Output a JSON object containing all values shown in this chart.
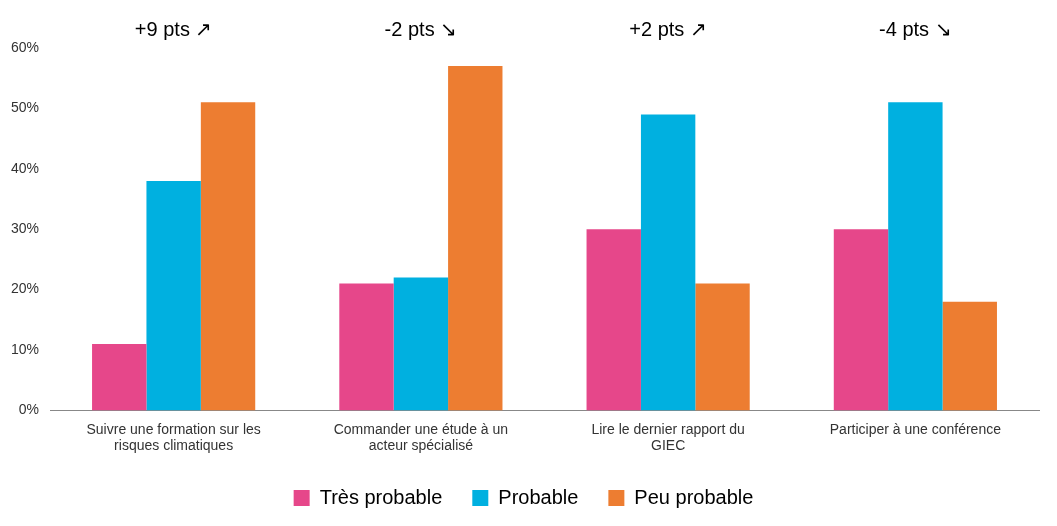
{
  "chart_data": {
    "type": "bar",
    "categories": [
      "Suivre une formation sur les risques climatiques",
      "Commander une étude à un acteur spécialisé",
      "Lire le dernier rapport du GIEC",
      "Participer à une conférence"
    ],
    "series": [
      {
        "name": "Très probable",
        "color": "#e6478a",
        "values": [
          11,
          21,
          30,
          30
        ]
      },
      {
        "name": "Probable",
        "color": "#00b0e0",
        "values": [
          38,
          22,
          49,
          51
        ]
      },
      {
        "name": "Peu probable",
        "color": "#ed7d31",
        "values": [
          51,
          57,
          21,
          18
        ]
      }
    ],
    "ylim": [
      0,
      60
    ],
    "yticks": [
      {
        "value": 0,
        "label": "0%"
      },
      {
        "value": 10,
        "label": "10%"
      },
      {
        "value": 20,
        "label": "20%"
      },
      {
        "value": 30,
        "label": "30%"
      },
      {
        "value": 40,
        "label": "40%"
      },
      {
        "value": 50,
        "label": "50%"
      },
      {
        "value": 60,
        "label": "60%"
      }
    ],
    "annotations": [
      "+9 pts ↗",
      "-2 pts ↘",
      "+2 pts ↗",
      "-4 pts ↘"
    ],
    "grid": false,
    "legend": "bottom"
  }
}
